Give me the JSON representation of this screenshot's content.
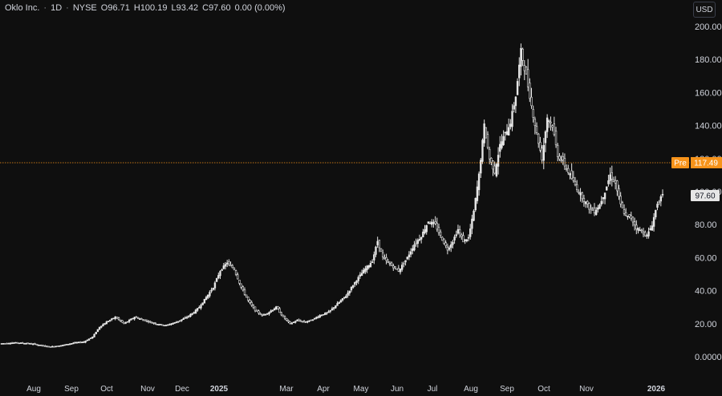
{
  "header": {
    "symbol": "Oklo Inc.",
    "interval": "1D",
    "exchange": "NYSE",
    "open": "O96.71",
    "high": "H100.19",
    "low": "L93.42",
    "close": "C97.60",
    "change": "0.00 (0.00%)"
  },
  "currency_button": "USD",
  "price_labels": {
    "pre_tag": "Pre",
    "pre_value": "117.49",
    "last_value": "97.60"
  },
  "colors": {
    "background": "#0f0f0f",
    "candle": "#e6e6e6",
    "pre_line": "#f7931a",
    "axis_text": "#d1d4dc"
  },
  "chart_data": {
    "type": "line",
    "style": "candlestick",
    "ylim": [
      0,
      200
    ],
    "y_ticks": [
      "0.0000",
      "20.00",
      "40.00",
      "60.00",
      "80.00",
      "100.00",
      "120.00",
      "140.00",
      "160.00",
      "180.00",
      "200.00"
    ],
    "x_ticks": [
      {
        "label": "Aug",
        "bold": false
      },
      {
        "label": "Sep",
        "bold": false
      },
      {
        "label": "Oct",
        "bold": false
      },
      {
        "label": "Nov",
        "bold": false
      },
      {
        "label": "Dec",
        "bold": false
      },
      {
        "label": "2025",
        "bold": true
      },
      {
        "label": "Mar",
        "bold": false
      },
      {
        "label": "Apr",
        "bold": false
      },
      {
        "label": "May",
        "bold": false
      },
      {
        "label": "Jun",
        "bold": false
      },
      {
        "label": "Jul",
        "bold": false
      },
      {
        "label": "Aug",
        "bold": false
      },
      {
        "label": "Sep",
        "bold": false
      },
      {
        "label": "Oct",
        "bold": false
      },
      {
        "label": "Nov",
        "bold": false
      },
      {
        "label": "2026",
        "bold": true
      }
    ],
    "series": [
      {
        "close_path": [
          [
            0,
            8
          ],
          [
            8,
            8.5
          ],
          [
            16,
            8
          ],
          [
            22,
            7
          ],
          [
            28,
            6
          ],
          [
            35,
            7
          ],
          [
            42,
            8.5
          ],
          [
            47,
            9
          ],
          [
            52,
            12
          ],
          [
            56,
            18
          ],
          [
            60,
            21
          ],
          [
            65,
            24
          ],
          [
            70,
            20
          ],
          [
            76,
            24
          ],
          [
            82,
            22
          ],
          [
            88,
            20
          ],
          [
            94,
            19
          ],
          [
            100,
            21
          ],
          [
            106,
            24
          ],
          [
            110,
            27
          ],
          [
            113,
            30
          ],
          [
            117,
            36
          ],
          [
            121,
            42
          ],
          [
            125,
            52
          ],
          [
            129,
            57
          ],
          [
            133,
            53
          ],
          [
            137,
            42
          ],
          [
            141,
            34
          ],
          [
            145,
            28
          ],
          [
            149,
            25
          ],
          [
            153,
            27
          ],
          [
            157,
            30
          ],
          [
            161,
            24
          ],
          [
            165,
            20
          ],
          [
            169,
            22
          ],
          [
            173,
            21
          ],
          [
            177,
            22
          ],
          [
            182,
            25
          ],
          [
            187,
            27
          ],
          [
            192,
            32
          ],
          [
            197,
            37
          ],
          [
            202,
            45
          ],
          [
            207,
            52
          ],
          [
            212,
            58
          ],
          [
            215,
            70
          ],
          [
            218,
            60
          ],
          [
            222,
            56
          ],
          [
            227,
            52
          ],
          [
            232,
            60
          ],
          [
            236,
            68
          ],
          [
            240,
            73
          ],
          [
            244,
            82
          ],
          [
            248,
            80
          ],
          [
            251,
            73
          ],
          [
            255,
            65
          ],
          [
            258,
            70
          ],
          [
            261,
            77
          ],
          [
            264,
            70
          ],
          [
            267,
            72
          ],
          [
            270,
            88
          ],
          [
            273,
            110
          ],
          [
            276,
            140
          ],
          [
            279,
            120
          ],
          [
            282,
            112
          ],
          [
            285,
            128
          ],
          [
            288,
            135
          ],
          [
            291,
            142
          ],
          [
            294,
            158
          ],
          [
            297,
            185
          ],
          [
            300,
            170
          ],
          [
            303,
            152
          ],
          [
            306,
            135
          ],
          [
            309,
            120
          ],
          [
            312,
            145
          ],
          [
            315,
            140
          ],
          [
            318,
            122
          ],
          [
            321,
            118
          ],
          [
            324,
            112
          ],
          [
            327,
            106
          ],
          [
            330,
            100
          ],
          [
            333,
            95
          ],
          [
            336,
            90
          ],
          [
            339,
            88
          ],
          [
            342,
            92
          ],
          [
            345,
            100
          ],
          [
            348,
            110
          ],
          [
            351,
            105
          ],
          [
            354,
            92
          ],
          [
            357,
            85
          ],
          [
            360,
            84
          ],
          [
            363,
            78
          ],
          [
            366,
            76
          ],
          [
            369,
            73
          ],
          [
            372,
            80
          ],
          [
            375,
            93
          ],
          [
            378,
            97.6
          ]
        ]
      }
    ]
  }
}
